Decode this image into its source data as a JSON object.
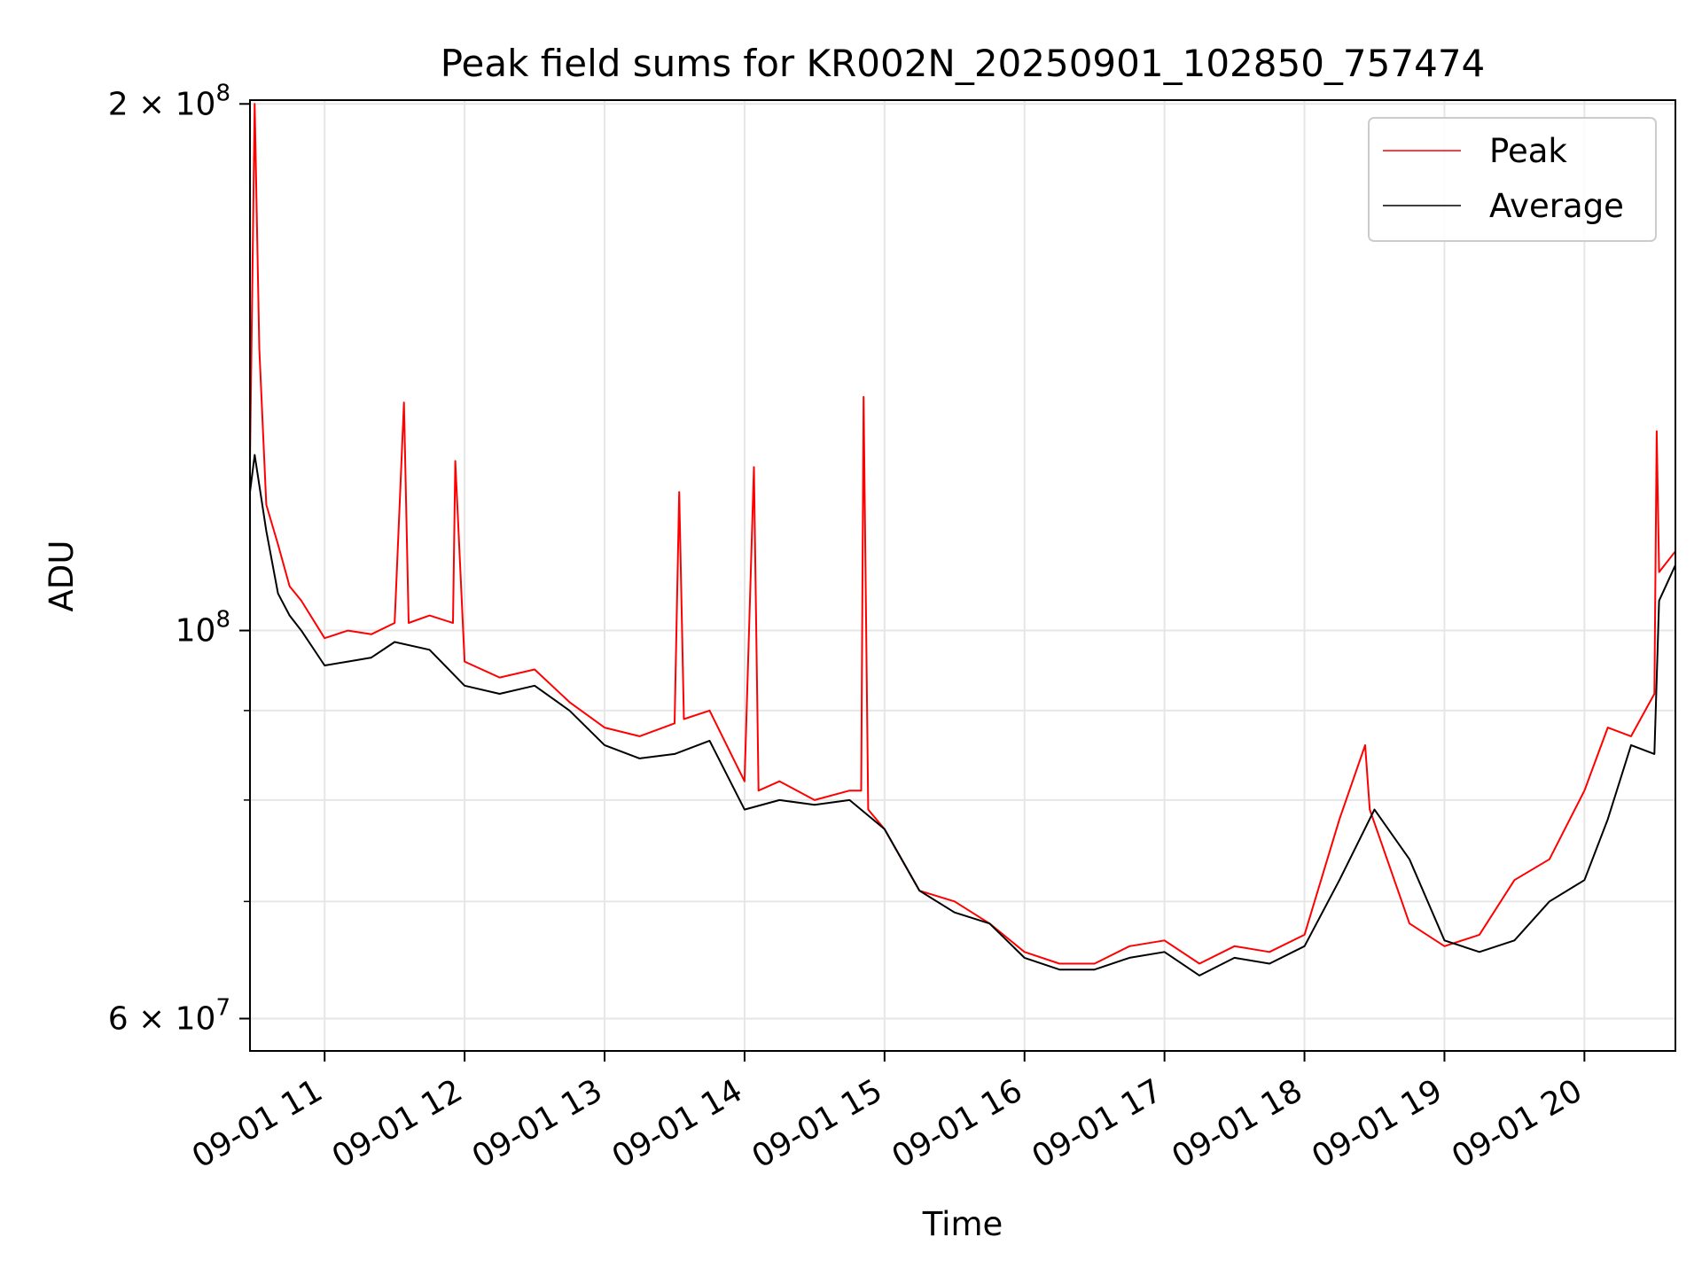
{
  "chart_data": {
    "type": "line",
    "title": "Peak field sums for KR002N_20250901_102850_757474",
    "xlabel": "Time",
    "ylabel": "ADU",
    "yscale": "log",
    "ylim": [
      57500000,
      201000000
    ],
    "xlim": [
      "09-01 10:28",
      "09-01 20:39"
    ],
    "grid": true,
    "legend_position": "top-right",
    "y_ticks": [
      {
        "value": 200000000,
        "mantissa": "2",
        "exponent": "8"
      },
      {
        "value": 100000000,
        "mantissa": "",
        "exponent": "8"
      },
      {
        "value": 60000000,
        "mantissa": "6",
        "exponent": "7"
      }
    ],
    "y_minor_gridlines": [
      90000000,
      80000000,
      70000000
    ],
    "x_ticks": [
      {
        "time": "09-01 11:00",
        "label": "09-01 11"
      },
      {
        "time": "09-01 12:00",
        "label": "09-01 12"
      },
      {
        "time": "09-01 13:00",
        "label": "09-01 13"
      },
      {
        "time": "09-01 14:00",
        "label": "09-01 14"
      },
      {
        "time": "09-01 15:00",
        "label": "09-01 15"
      },
      {
        "time": "09-01 16:00",
        "label": "09-01 16"
      },
      {
        "time": "09-01 17:00",
        "label": "09-01 17"
      },
      {
        "time": "09-01 18:00",
        "label": "09-01 18"
      },
      {
        "time": "09-01 19:00",
        "label": "09-01 19"
      },
      {
        "time": "09-01 20:00",
        "label": "09-01 20"
      }
    ],
    "series": [
      {
        "name": "Peak",
        "color": "#ff0000",
        "x": [
          "09-01 10:28",
          "09-01 10:30",
          "09-01 10:32",
          "09-01 10:35",
          "09-01 10:40",
          "09-01 10:45",
          "09-01 10:50",
          "09-01 11:00",
          "09-01 11:10",
          "09-01 11:20",
          "09-01 11:30",
          "09-01 11:34",
          "09-01 11:36",
          "09-01 11:45",
          "09-01 11:55",
          "09-01 11:56",
          "09-01 12:00",
          "09-01 12:15",
          "09-01 12:30",
          "09-01 12:45",
          "09-01 13:00",
          "09-01 13:15",
          "09-01 13:30",
          "09-01 13:32",
          "09-01 13:34",
          "09-01 13:45",
          "09-01 14:00",
          "09-01 14:04",
          "09-01 14:06",
          "09-01 14:15",
          "09-01 14:30",
          "09-01 14:45",
          "09-01 14:50",
          "09-01 14:51",
          "09-01 14:53",
          "09-01 15:00",
          "09-01 15:15",
          "09-01 15:30",
          "09-01 15:45",
          "09-01 16:00",
          "09-01 16:15",
          "09-01 16:30",
          "09-01 16:45",
          "09-01 17:00",
          "09-01 17:15",
          "09-01 17:30",
          "09-01 17:45",
          "09-01 18:00",
          "09-01 18:15",
          "09-01 18:26",
          "09-01 18:28",
          "09-01 18:45",
          "09-01 19:00",
          "09-01 19:15",
          "09-01 19:30",
          "09-01 19:45",
          "09-01 20:00",
          "09-01 20:10",
          "09-01 20:20",
          "09-01 20:30",
          "09-01 20:31",
          "09-01 20:32",
          "09-01 20:39"
        ],
        "values": [
          125000000,
          200000000,
          145000000,
          118000000,
          112000000,
          106000000,
          104000000,
          99000000,
          100000000,
          99500000,
          101000000,
          135000000,
          101000000,
          102000000,
          101000000,
          125000000,
          96000000,
          94000000,
          95000000,
          91000000,
          88000000,
          87000000,
          88500000,
          120000000,
          89000000,
          90000000,
          82000000,
          124000000,
          81000000,
          82000000,
          80000000,
          81000000,
          81000000,
          136000000,
          79000000,
          77000000,
          71000000,
          70000000,
          68000000,
          65500000,
          64500000,
          64500000,
          66000000,
          66500000,
          64500000,
          66000000,
          65500000,
          67000000,
          78000000,
          86000000,
          79000000,
          68000000,
          66000000,
          67000000,
          72000000,
          74000000,
          81000000,
          88000000,
          87000000,
          92000000,
          130000000,
          108000000,
          111000000
        ]
      },
      {
        "name": "Average",
        "color": "#000000",
        "x": [
          "09-01 10:28",
          "09-01 10:30",
          "09-01 10:35",
          "09-01 10:40",
          "09-01 10:45",
          "09-01 10:50",
          "09-01 11:00",
          "09-01 11:10",
          "09-01 11:20",
          "09-01 11:30",
          "09-01 11:45",
          "09-01 12:00",
          "09-01 12:15",
          "09-01 12:30",
          "09-01 12:45",
          "09-01 13:00",
          "09-01 13:15",
          "09-01 13:30",
          "09-01 13:45",
          "09-01 14:00",
          "09-01 14:15",
          "09-01 14:30",
          "09-01 14:45",
          "09-01 15:00",
          "09-01 15:15",
          "09-01 15:30",
          "09-01 15:45",
          "09-01 16:00",
          "09-01 16:15",
          "09-01 16:30",
          "09-01 16:45",
          "09-01 17:00",
          "09-01 17:15",
          "09-01 17:30",
          "09-01 17:45",
          "09-01 18:00",
          "09-01 18:15",
          "09-01 18:30",
          "09-01 18:45",
          "09-01 19:00",
          "09-01 19:15",
          "09-01 19:30",
          "09-01 19:45",
          "09-01 20:00",
          "09-01 20:10",
          "09-01 20:20",
          "09-01 20:30",
          "09-01 20:32",
          "09-01 20:39"
        ],
        "values": [
          120000000,
          126000000,
          114000000,
          105000000,
          102000000,
          100000000,
          95500000,
          96000000,
          96500000,
          98500000,
          97500000,
          93000000,
          92000000,
          93000000,
          90000000,
          86000000,
          84500000,
          85000000,
          86500000,
          79000000,
          80000000,
          79500000,
          80000000,
          77000000,
          71000000,
          69000000,
          68000000,
          65000000,
          64000000,
          64000000,
          65000000,
          65500000,
          63500000,
          65000000,
          64500000,
          66000000,
          72000000,
          79000000,
          74000000,
          66500000,
          65500000,
          66500000,
          70000000,
          72000000,
          78000000,
          86000000,
          85000000,
          104000000,
          109000000
        ]
      }
    ]
  }
}
